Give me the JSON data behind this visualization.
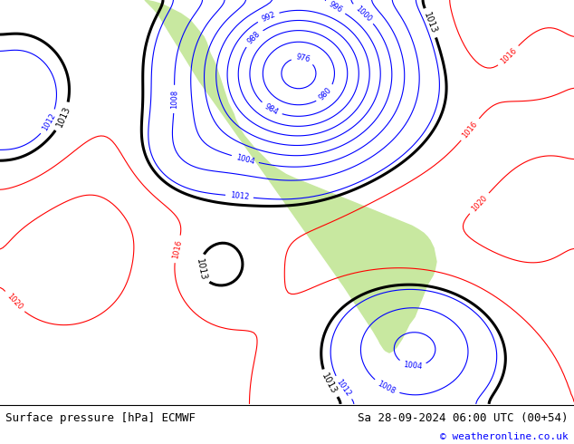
{
  "title_left": "Surface pressure [hPa] ECMWF",
  "title_right": "Sa 28-09-2024 06:00 UTC (00+54)",
  "copyright": "© weatheronline.co.uk",
  "bg_color": "#d0d0d0",
  "land_color": "#c8e8a0",
  "fig_width": 6.34,
  "fig_height": 4.9,
  "dpi": 100
}
